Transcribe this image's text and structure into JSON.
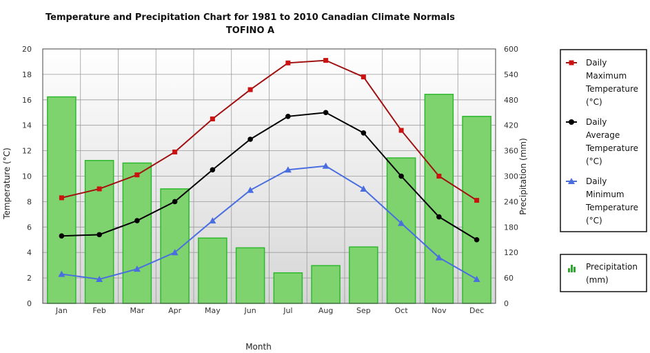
{
  "chart_data": {
    "type": "bar",
    "title": "Temperature and Precipitation Chart for 1981 to 2010 Canadian Climate Normals",
    "subtitle": "TOFINO A",
    "xlabel": "Month",
    "ylabel_left": "Temperature (°C)",
    "ylabel_right": "Precipitation (mm)",
    "categories": [
      "Jan",
      "Feb",
      "Mar",
      "Apr",
      "May",
      "Jun",
      "Jul",
      "Aug",
      "Sep",
      "Oct",
      "Nov",
      "Dec"
    ],
    "ylim_left": [
      0,
      20
    ],
    "ylim_right": [
      0,
      600
    ],
    "yticks_left": [
      "0",
      "2",
      "4",
      "6",
      "8",
      "10",
      "12",
      "14",
      "16",
      "18",
      "20"
    ],
    "yticks_right": [
      "0",
      "60",
      "120",
      "180",
      "240",
      "300",
      "360",
      "420",
      "480",
      "540",
      "600"
    ],
    "grid": true,
    "legend_position": "right",
    "series": [
      {
        "name": "Daily Maximum Temperature (°C)",
        "legend_lines": [
          "Daily",
          "Maximum",
          "Temperature",
          "(°C)"
        ],
        "kind": "line",
        "axis": "left",
        "marker": "square",
        "color": "#a01010",
        "marker_color": "#cc1111",
        "values": [
          8.3,
          9.0,
          10.1,
          11.9,
          14.5,
          16.8,
          18.9,
          19.1,
          17.8,
          13.6,
          10.0,
          8.1
        ]
      },
      {
        "name": "Daily Average Temperature (°C)",
        "legend_lines": [
          "Daily",
          "Average",
          "Temperature",
          "(°C)"
        ],
        "kind": "line",
        "axis": "left",
        "marker": "circle",
        "color": "#000000",
        "marker_color": "#000000",
        "values": [
          5.3,
          5.4,
          6.5,
          8.0,
          10.5,
          12.9,
          14.7,
          15.0,
          13.4,
          10.0,
          6.8,
          5.0
        ]
      },
      {
        "name": "Daily Minimum Temperature (°C)",
        "legend_lines": [
          "Daily",
          "Minimum",
          "Temperature",
          "(°C)"
        ],
        "kind": "line",
        "axis": "left",
        "marker": "triangle",
        "color": "#4a6ee0",
        "marker_color": "#4a6ee0",
        "values": [
          2.3,
          1.9,
          2.7,
          4.0,
          6.5,
          8.9,
          10.5,
          10.8,
          9.0,
          6.3,
          3.6,
          1.9
        ]
      },
      {
        "name": "Precipitation (mm)",
        "legend_lines": [
          "Precipitation",
          "(mm)"
        ],
        "kind": "bar",
        "axis": "right",
        "color": "#7ed36e",
        "border_color": "#2eb82e",
        "values": [
          487,
          337,
          331,
          270,
          154,
          131,
          72,
          89,
          133,
          343,
          493,
          441
        ]
      }
    ]
  }
}
